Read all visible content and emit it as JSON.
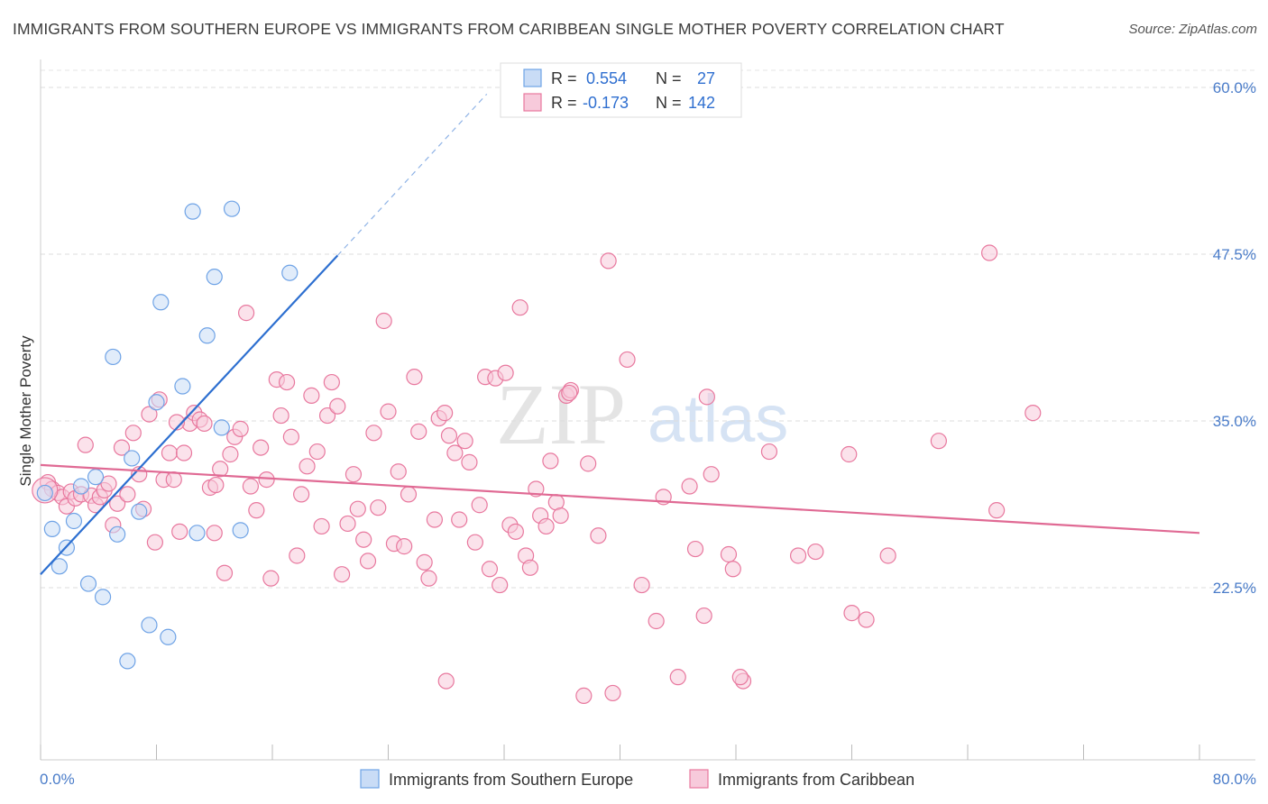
{
  "title": "IMMIGRANTS FROM SOUTHERN EUROPE VS IMMIGRANTS FROM CARIBBEAN SINGLE MOTHER POVERTY CORRELATION CHART",
  "source": "Source: ZipAtlas.com",
  "watermark": {
    "zip": "ZIP",
    "atlas": "atlas"
  },
  "legend_stats": [
    {
      "r_label": "R =",
      "r_value": "0.554",
      "n_label": "N =",
      "n_value": "27"
    },
    {
      "r_label": "R =",
      "r_value": "-0.173",
      "n_label": "N =",
      "n_value": "142"
    }
  ],
  "chart_data": {
    "type": "scatter",
    "title": "IMMIGRANTS FROM SOUTHERN EUROPE VS IMMIGRANTS FROM CARIBBEAN SINGLE MOTHER POVERTY CORRELATION CHART",
    "xlabel": "",
    "ylabel": "Single Mother Poverty",
    "xlim": [
      0,
      80
    ],
    "ylim": [
      12.5,
      63
    ],
    "x_tick_labels": [
      "0.0%",
      "80.0%"
    ],
    "y_ticks": [
      22.5,
      35.0,
      47.5,
      60.0
    ],
    "y_tick_labels": [
      "22.5%",
      "35.0%",
      "47.5%",
      "60.0%"
    ],
    "grid": true,
    "colors": {
      "blue": "#6fa3e6",
      "blue_fill": "#c9dcf6",
      "pink": "#e8789e",
      "pink_fill": "#f7cadb",
      "blue_line": "#2d6fd0",
      "pink_line": "#e06a94"
    },
    "series": [
      {
        "name": "Immigrants from Southern Europe",
        "color": "#6fa3e6",
        "points": [
          [
            0.3,
            29.6
          ],
          [
            0.8,
            26.9
          ],
          [
            1.3,
            24.1
          ],
          [
            1.8,
            25.5
          ],
          [
            2.3,
            27.5
          ],
          [
            2.8,
            30.1
          ],
          [
            3.3,
            22.8
          ],
          [
            3.8,
            30.8
          ],
          [
            4.3,
            21.8
          ],
          [
            5.0,
            39.8
          ],
          [
            5.3,
            26.5
          ],
          [
            6.0,
            17.0
          ],
          [
            6.3,
            32.2
          ],
          [
            6.8,
            28.2
          ],
          [
            7.5,
            19.7
          ],
          [
            8.0,
            36.4
          ],
          [
            8.3,
            43.9
          ],
          [
            8.8,
            18.8
          ],
          [
            9.8,
            37.6
          ],
          [
            10.5,
            50.7
          ],
          [
            10.8,
            26.6
          ],
          [
            11.5,
            41.4
          ],
          [
            12.0,
            45.8
          ],
          [
            12.5,
            34.5
          ],
          [
            13.2,
            50.9
          ],
          [
            13.8,
            26.8
          ],
          [
            17.2,
            46.1
          ]
        ],
        "trend": {
          "x": [
            0,
            20.5
          ],
          "y": [
            23.5,
            47.4
          ],
          "dashed_extension": {
            "x": [
              20.5,
              30.8
            ],
            "y": [
              47.4,
              59.5
            ]
          }
        }
      },
      {
        "name": "Immigrants from Caribbean",
        "color": "#e8789e",
        "points": [
          [
            0.5,
            30.4
          ],
          [
            0.8,
            29.9
          ],
          [
            1.2,
            29.6
          ],
          [
            1.5,
            29.3
          ],
          [
            1.8,
            28.6
          ],
          [
            2.1,
            29.7
          ],
          [
            2.4,
            29.2
          ],
          [
            2.8,
            29.5
          ],
          [
            3.1,
            33.2
          ],
          [
            3.5,
            29.4
          ],
          [
            3.8,
            28.7
          ],
          [
            4.1,
            29.3
          ],
          [
            4.4,
            29.8
          ],
          [
            4.7,
            30.3
          ],
          [
            5.0,
            27.2
          ],
          [
            5.3,
            28.8
          ],
          [
            5.6,
            33.0
          ],
          [
            6.0,
            29.5
          ],
          [
            6.4,
            34.1
          ],
          [
            6.8,
            31.0
          ],
          [
            7.1,
            28.4
          ],
          [
            7.5,
            35.5
          ],
          [
            7.9,
            25.9
          ],
          [
            8.2,
            36.6
          ],
          [
            8.5,
            30.6
          ],
          [
            8.9,
            32.6
          ],
          [
            9.2,
            30.6
          ],
          [
            9.6,
            26.7
          ],
          [
            9.9,
            32.6
          ],
          [
            10.3,
            34.8
          ],
          [
            10.6,
            35.6
          ],
          [
            11.0,
            35.1
          ],
          [
            11.3,
            34.8
          ],
          [
            11.7,
            30.0
          ],
          [
            12.0,
            26.6
          ],
          [
            12.4,
            31.4
          ],
          [
            12.7,
            23.6
          ],
          [
            13.1,
            32.5
          ],
          [
            13.4,
            33.8
          ],
          [
            13.8,
            34.4
          ],
          [
            14.2,
            43.1
          ],
          [
            14.5,
            30.1
          ],
          [
            14.9,
            28.3
          ],
          [
            15.2,
            33.0
          ],
          [
            15.6,
            30.6
          ],
          [
            15.9,
            23.2
          ],
          [
            16.3,
            38.1
          ],
          [
            16.6,
            35.4
          ],
          [
            17.0,
            37.9
          ],
          [
            17.3,
            33.8
          ],
          [
            17.7,
            24.9
          ],
          [
            18.0,
            29.5
          ],
          [
            18.4,
            31.6
          ],
          [
            18.7,
            36.9
          ],
          [
            19.1,
            32.7
          ],
          [
            19.4,
            27.1
          ],
          [
            19.8,
            35.4
          ],
          [
            20.1,
            37.9
          ],
          [
            20.5,
            36.1
          ],
          [
            20.8,
            23.5
          ],
          [
            21.2,
            27.3
          ],
          [
            21.6,
            31.0
          ],
          [
            21.9,
            28.4
          ],
          [
            22.3,
            26.1
          ],
          [
            22.6,
            24.5
          ],
          [
            23.0,
            34.1
          ],
          [
            23.3,
            28.5
          ],
          [
            23.7,
            42.5
          ],
          [
            24.0,
            35.7
          ],
          [
            24.4,
            25.8
          ],
          [
            24.7,
            31.2
          ],
          [
            25.1,
            25.6
          ],
          [
            25.4,
            29.5
          ],
          [
            25.8,
            38.3
          ],
          [
            26.1,
            34.2
          ],
          [
            26.5,
            24.4
          ],
          [
            26.8,
            23.2
          ],
          [
            27.2,
            27.6
          ],
          [
            27.5,
            35.2
          ],
          [
            27.9,
            35.6
          ],
          [
            28.2,
            33.9
          ],
          [
            28.6,
            32.6
          ],
          [
            28.9,
            27.6
          ],
          [
            29.3,
            33.5
          ],
          [
            29.6,
            31.9
          ],
          [
            30.0,
            25.9
          ],
          [
            30.3,
            28.7
          ],
          [
            30.7,
            38.3
          ],
          [
            31.0,
            23.9
          ],
          [
            31.4,
            38.2
          ],
          [
            31.7,
            22.7
          ],
          [
            32.1,
            38.6
          ],
          [
            32.4,
            27.2
          ],
          [
            32.8,
            26.7
          ],
          [
            33.1,
            43.5
          ],
          [
            33.5,
            24.9
          ],
          [
            33.8,
            24.0
          ],
          [
            34.2,
            29.9
          ],
          [
            34.5,
            27.9
          ],
          [
            34.9,
            27.1
          ],
          [
            35.2,
            32.0
          ],
          [
            35.6,
            28.9
          ],
          [
            35.9,
            27.9
          ],
          [
            36.3,
            36.9
          ],
          [
            36.6,
            37.3
          ],
          [
            37.8,
            31.8
          ],
          [
            38.5,
            26.4
          ],
          [
            39.2,
            47.0
          ],
          [
            40.5,
            39.6
          ],
          [
            41.5,
            22.7
          ],
          [
            42.5,
            20.0
          ],
          [
            43.0,
            29.3
          ],
          [
            44.0,
            15.8
          ],
          [
            44.8,
            30.1
          ],
          [
            45.8,
            20.4
          ],
          [
            46.0,
            36.8
          ],
          [
            46.3,
            31.0
          ],
          [
            47.5,
            25.0
          ],
          [
            47.8,
            23.9
          ],
          [
            48.5,
            15.5
          ],
          [
            50.3,
            32.7
          ],
          [
            52.3,
            24.9
          ],
          [
            53.5,
            25.2
          ],
          [
            55.8,
            32.5
          ],
          [
            56.0,
            20.6
          ],
          [
            57.0,
            20.1
          ],
          [
            58.5,
            24.9
          ],
          [
            62.0,
            33.5
          ],
          [
            65.5,
            47.6
          ],
          [
            66.0,
            28.3
          ],
          [
            68.5,
            35.6
          ],
          [
            28.0,
            15.5
          ],
          [
            37.5,
            14.4
          ],
          [
            39.5,
            14.6
          ],
          [
            48.3,
            15.8
          ],
          [
            36.5,
            37.1
          ],
          [
            9.4,
            34.9
          ],
          [
            12.1,
            30.2
          ],
          [
            45.2,
            25.4
          ]
        ],
        "trend": {
          "x": [
            0,
            80
          ],
          "y": [
            31.7,
            26.6
          ]
        }
      }
    ]
  }
}
